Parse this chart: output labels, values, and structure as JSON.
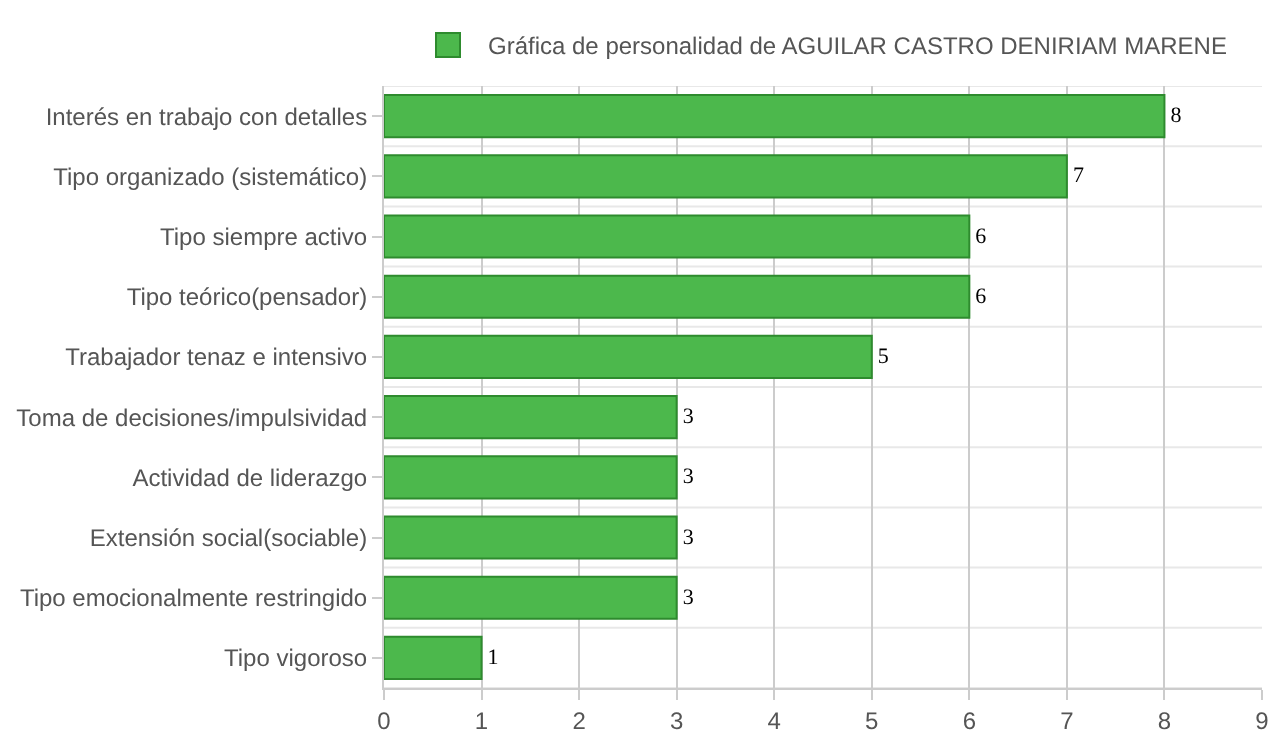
{
  "chart_data": {
    "type": "bar",
    "orientation": "horizontal",
    "categories": [
      "Interés en trabajo con detalles",
      "Tipo organizado (sistemático)",
      "Tipo siempre activo",
      "Tipo teórico(pensador)",
      "Trabajador tenaz e intensivo",
      "Toma de decisiones/impulsividad",
      "Actividad de liderazgo",
      "Extensión social(sociable)",
      "Tipo emocionalmente restringido",
      "Tipo vigoroso"
    ],
    "series": [
      {
        "name": "Gráfica de personalidad de AGUILAR CASTRO DENIRIAM MARENE",
        "color": "#4cb84c",
        "values": [
          8,
          7,
          6,
          6,
          5,
          3,
          3,
          3,
          3,
          1
        ]
      }
    ],
    "xlim": [
      0,
      9
    ],
    "xticks": [
      0,
      1,
      2,
      3,
      4,
      5,
      6,
      7,
      8,
      9
    ],
    "grid": true,
    "legend": "top",
    "data_labels": true
  }
}
